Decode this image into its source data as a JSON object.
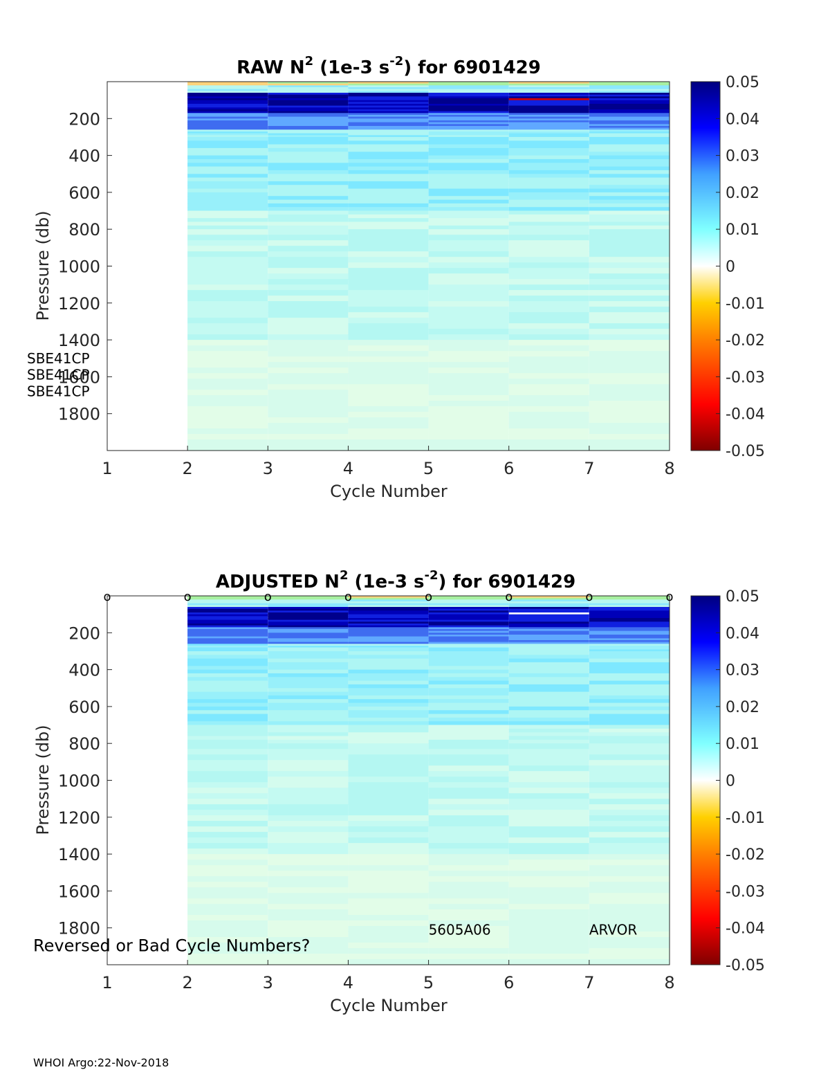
{
  "figure": {
    "footer": "WHOI Argo:22-Nov-2018"
  },
  "chart_data": [
    {
      "type": "heatmap",
      "title": {
        "prefix": "RAW N",
        "sup1": "2",
        "mid": " (1e-3 s",
        "sup2": "-2",
        "suffix": ") for 6901429"
      },
      "xlabel": "Cycle Number",
      "ylabel": "Pressure (db)",
      "xlim": [
        1,
        8
      ],
      "ylim": [
        0,
        2000
      ],
      "y_reversed": true,
      "xticks": [
        1,
        2,
        3,
        4,
        5,
        6,
        7,
        8
      ],
      "yticks": [
        200,
        400,
        600,
        800,
        1000,
        1200,
        1400,
        1600,
        1800
      ],
      "clim": [
        -0.05,
        0.05
      ],
      "colorbar_ticks": [
        "0.05",
        "0.04",
        "0.03",
        "0.02",
        "0.01",
        "0",
        "-0.01",
        "-0.02",
        "-0.03",
        "-0.04",
        "-0.05"
      ],
      "colormap": "jet-diverging",
      "missing_cycles": [
        1
      ],
      "cycles": [
        2,
        3,
        4,
        5,
        6,
        7
      ],
      "annotations": [
        {
          "text": "SBE41CP",
          "x": 1,
          "y": 1500
        },
        {
          "text": "SBE41CP",
          "x": 1,
          "y": 1590
        },
        {
          "text": "SBE41CP",
          "x": 1,
          "y": 1680
        }
      ],
      "cycle_markers": []
    },
    {
      "type": "heatmap",
      "title": {
        "prefix": "ADJUSTED N",
        "sup1": "2",
        "mid": " (1e-3 s",
        "sup2": "-2",
        "suffix": ") for 6901429"
      },
      "xlabel": "Cycle Number",
      "ylabel": "Pressure (db)",
      "xlim": [
        1,
        8
      ],
      "ylim": [
        0,
        2000
      ],
      "y_reversed": true,
      "xticks": [
        1,
        2,
        3,
        4,
        5,
        6,
        7,
        8
      ],
      "yticks": [
        200,
        400,
        600,
        800,
        1000,
        1200,
        1400,
        1600,
        1800
      ],
      "clim": [
        -0.05,
        0.05
      ],
      "colorbar_ticks": [
        "0.05",
        "0.04",
        "0.03",
        "0.02",
        "0.01",
        "0",
        "-0.01",
        "-0.02",
        "-0.03",
        "-0.04",
        "-0.05"
      ],
      "colormap": "jet-diverging",
      "missing_cycles": [
        1
      ],
      "cycles": [
        2,
        3,
        4,
        5,
        6,
        7
      ],
      "annotations": [
        {
          "text": "5605A06",
          "x": 5,
          "y": 1810
        },
        {
          "text": "ARVOR",
          "x": 7,
          "y": 1810
        },
        {
          "text": "Reversed or Bad Cycle Numbers?",
          "x": 0.22,
          "y": 1900
        }
      ],
      "cycle_markers": [
        {
          "text": "o",
          "x": [
            1,
            2,
            3,
            4,
            5,
            6,
            7,
            8
          ],
          "y": 0
        }
      ]
    }
  ]
}
